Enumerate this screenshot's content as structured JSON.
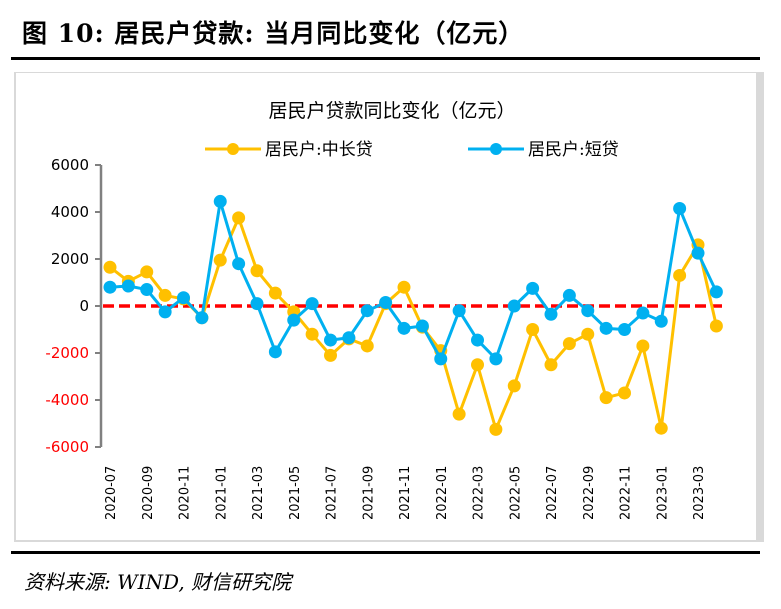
{
  "figure": {
    "title": "图 10: 居民户贷款: 当月同比变化（亿元）",
    "source": "资料来源: WIND, 财信研究院"
  },
  "chart_data": {
    "type": "line",
    "title": "居民户贷款同比变化（亿元）",
    "xlabel": "",
    "ylabel": "",
    "ylim": [
      -6000,
      6000
    ],
    "yticks": [
      6000,
      4000,
      2000,
      0,
      -2000,
      -4000,
      -6000
    ],
    "ytick_labels": [
      "6000",
      "4000",
      "2000",
      "0",
      "-2000",
      "-4000",
      "-6000"
    ],
    "negative_tick_color": "#ff0000",
    "grid": false,
    "legend_position": "top",
    "reference_line": {
      "value": 0,
      "color": "#ff0000",
      "style": "dashed"
    },
    "x": [
      "2020-07",
      "2020-08",
      "2020-09",
      "2020-10",
      "2020-11",
      "2020-12",
      "2021-01",
      "2021-02",
      "2021-03",
      "2021-04",
      "2021-05",
      "2021-06",
      "2021-07",
      "2021-08",
      "2021-09",
      "2021-10",
      "2021-11",
      "2021-12",
      "2022-01",
      "2022-02",
      "2022-03",
      "2022-04",
      "2022-05",
      "2022-06",
      "2022-07",
      "2022-08",
      "2022-09",
      "2022-10",
      "2022-11",
      "2022-12",
      "2023-01",
      "2023-02",
      "2023-03",
      "2023-04"
    ],
    "xtick_labels": [
      "2020-07",
      "2020-09",
      "2020-11",
      "2021-01",
      "2021-03",
      "2021-05",
      "2021-07",
      "2021-09",
      "2021-11",
      "2022-01",
      "2022-03",
      "2022-05",
      "2022-07",
      "2022-09",
      "2022-11",
      "2023-01",
      "2023-03"
    ],
    "series": [
      {
        "name": "居民户:中长贷",
        "color": "#ffc000",
        "values": [
          1650,
          1050,
          1450,
          450,
          300,
          -500,
          1950,
          3750,
          1500,
          550,
          -250,
          -1200,
          -2100,
          -1400,
          -1700,
          100,
          800,
          -900,
          -1900,
          -4600,
          -2500,
          -5250,
          -3400,
          -1000,
          -2500,
          -1600,
          -1200,
          -3900,
          -3700,
          -1700,
          -5200,
          1300,
          2600,
          -850
        ]
      },
      {
        "name": "居民户:短贷",
        "color": "#00b0f0",
        "values": [
          800,
          850,
          700,
          -250,
          350,
          -500,
          4450,
          1800,
          100,
          -1950,
          -600,
          100,
          -1450,
          -1350,
          -200,
          150,
          -950,
          -850,
          -2250,
          -200,
          -1450,
          -2250,
          0,
          750,
          -350,
          450,
          -200,
          -950,
          -1000,
          -300,
          -650,
          4150,
          2250,
          600
        ]
      }
    ]
  }
}
